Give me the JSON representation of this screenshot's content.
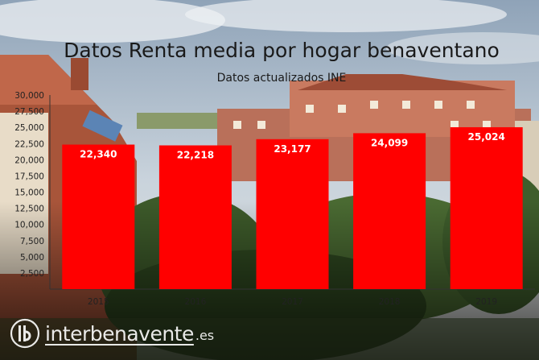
{
  "chart_data": {
    "type": "bar",
    "title": "Datos Renta media por hogar benaventano",
    "subtitle": "Datos actualizados INE",
    "categories": [
      "2015",
      "2016",
      "2017",
      "2018",
      "2019"
    ],
    "values": [
      22340,
      22218,
      23177,
      24099,
      25024
    ],
    "value_labels": [
      "22,340",
      "22,218",
      "23,177",
      "24,099",
      "25,024"
    ],
    "y_ticks": [
      "2,500",
      "5,000",
      "7,500",
      "10,000",
      "12,500",
      "15,000",
      "17,500",
      "20,000",
      "22,500",
      "25,000",
      "27,500",
      "30,000"
    ],
    "ylim": [
      0,
      30000
    ],
    "xlabel": "",
    "ylabel": "",
    "grid": false,
    "bar_color": "#ff0000",
    "label_color": "#ffffff"
  },
  "watermark": {
    "icon": "ib-logo-icon",
    "text": "interbenavente",
    "suffix": ".es"
  }
}
